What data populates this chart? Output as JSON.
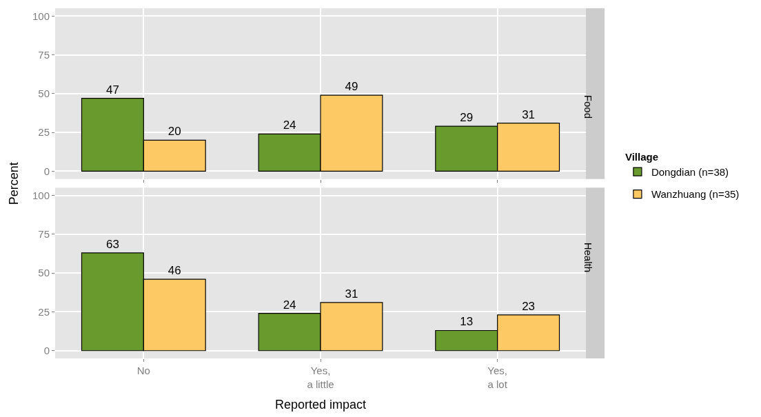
{
  "chart_data": [
    {
      "type": "bar",
      "title": "Food",
      "ylabel": "Percent",
      "legend_title": "Village",
      "categories": [
        "No",
        "Yes,\na little",
        "Yes,\na lot"
      ],
      "series": [
        {
          "name": "Dongdian (n=38)",
          "color": "#699a2e",
          "values": [
            47,
            24,
            29
          ]
        },
        {
          "name": "Wanzhuang (n=35)",
          "color": "#fdc964",
          "values": [
            20,
            49,
            31
          ]
        }
      ],
      "ylim": [
        -5,
        105
      ],
      "yticks": [
        0,
        25,
        50,
        75,
        100
      ],
      "grid": true,
      "legend": "right",
      "data_labels": true,
      "tick_labels": "y"
    },
    {
      "type": "bar",
      "title": "Health",
      "xlabel": "Reported impact",
      "categories": [
        "No",
        "Yes,\na little",
        "Yes,\na lot"
      ],
      "series": [
        {
          "color": "#699a2e",
          "values": [
            63,
            24,
            13
          ]
        },
        {
          "color": "#fdc964",
          "values": [
            46,
            31,
            23
          ]
        }
      ],
      "ylim": [
        -5,
        105
      ],
      "yticks": [
        0,
        25,
        50,
        75,
        100
      ],
      "grid": true,
      "data_labels": true
    }
  ]
}
